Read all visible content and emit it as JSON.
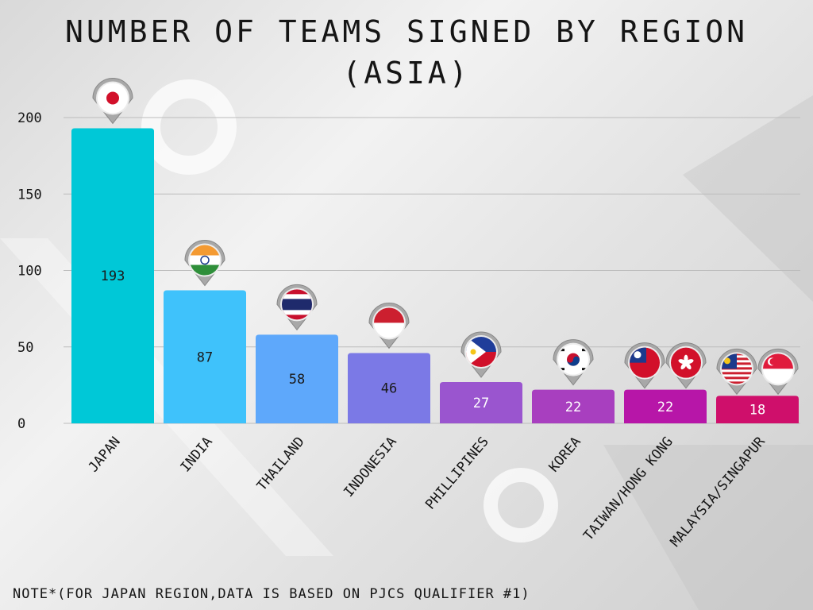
{
  "title_line1": "NUMBER OF TEAMS SIGNED BY REGION",
  "title_line2": "(ASIA)",
  "note": "NOTE*(FOR JAPAN REGION,DATA IS BASED ON PJCS QUALIFIER #1)",
  "chart_data": {
    "type": "bar",
    "title": "NUMBER OF TEAMS SIGNED BY REGION (ASIA)",
    "categories": [
      "JAPAN",
      "INDIA",
      "THAILAND",
      "INDONESIA",
      "PHILLIPINES",
      "KOREA",
      "TAIWAN/HONG KONG",
      "MALAYSIA/SINGAPUR"
    ],
    "values": [
      193,
      87,
      58,
      46,
      27,
      22,
      22,
      18
    ],
    "data_labels": [
      "193",
      "87",
      "58",
      "46",
      "27",
      "22",
      "22",
      "18"
    ],
    "colors": [
      "#00c8d7",
      "#3fc2fb",
      "#5ea8fb",
      "#7b79e6",
      "#9a55cf",
      "#a83fbf",
      "#b716a8",
      "#cf0f6b"
    ],
    "flags": [
      [
        "japan-flag"
      ],
      [
        "india-flag"
      ],
      [
        "thailand-flag"
      ],
      [
        "indonesia-flag"
      ],
      [
        "philippines-flag"
      ],
      [
        "korea-flag"
      ],
      [
        "taiwan-flag",
        "hong-kong-flag"
      ],
      [
        "malaysia-flag",
        "singapore-flag"
      ]
    ],
    "yticks": [
      0,
      50,
      100,
      150,
      200
    ],
    "ylim": [
      0,
      200
    ],
    "grid": true,
    "xlabel": "",
    "ylabel": ""
  }
}
